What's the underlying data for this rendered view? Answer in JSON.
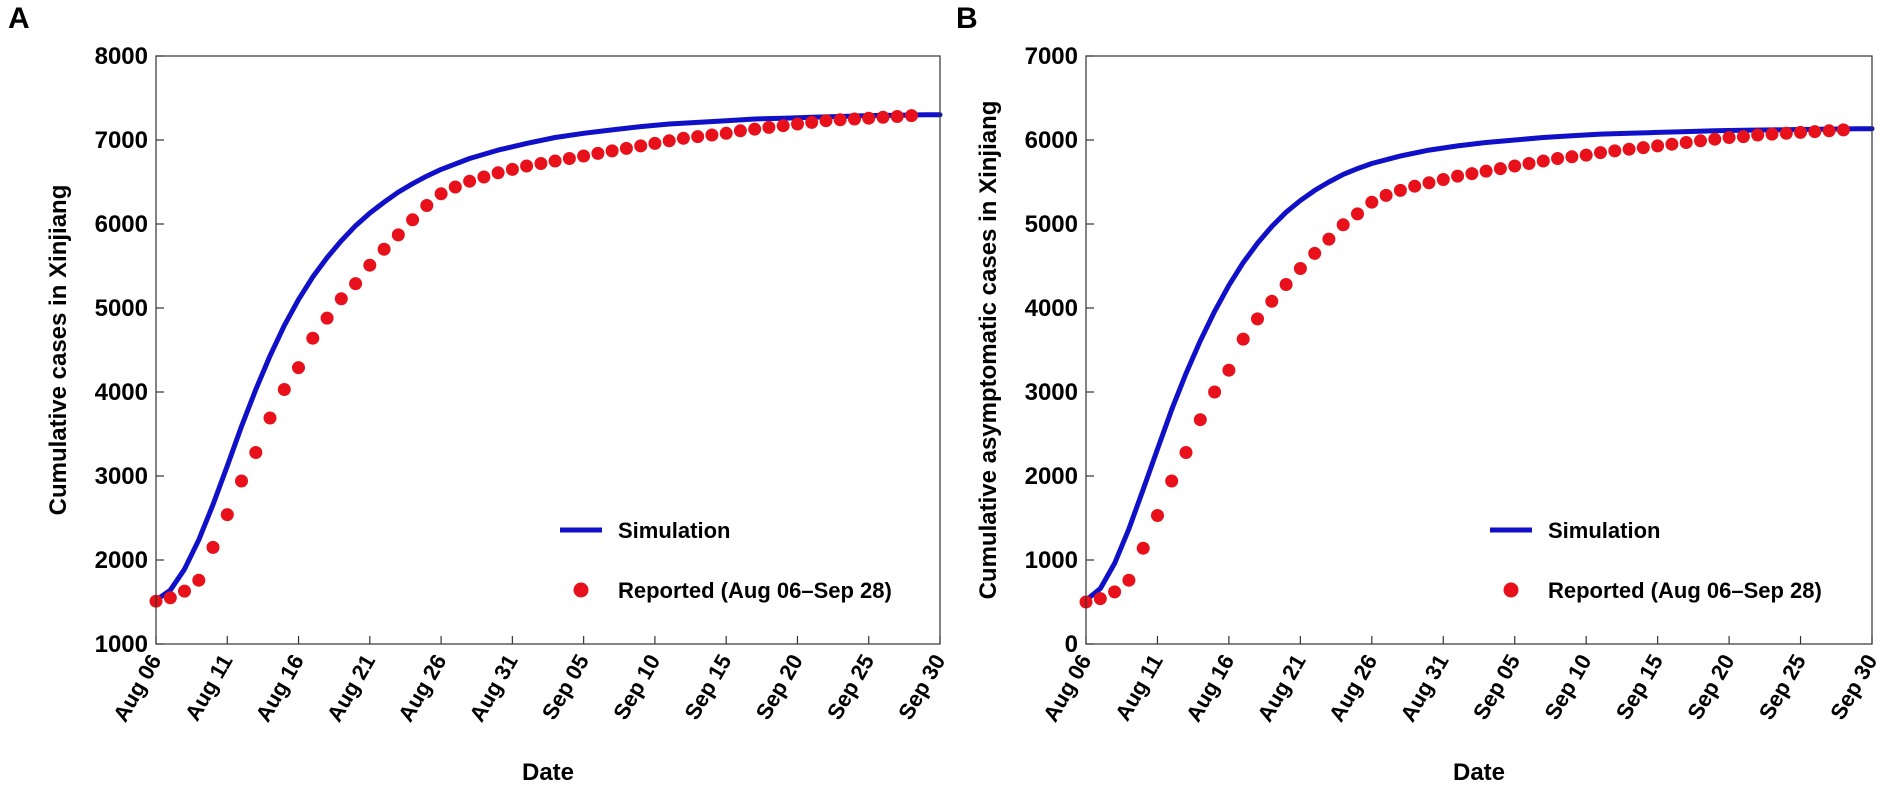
{
  "chart_data": [
    {
      "panel": "A",
      "type": "line+scatter",
      "title": "",
      "xlabel": "Date",
      "ylabel": "Cumulative cases in Xinjiang",
      "xlim": [
        0,
        55
      ],
      "ylim": [
        1000,
        8000
      ],
      "yticks": [
        1000,
        2000,
        3000,
        4000,
        5000,
        6000,
        7000,
        8000
      ],
      "xtick_positions": [
        0,
        5,
        10,
        15,
        20,
        25,
        30,
        35,
        40,
        45,
        50,
        55
      ],
      "xtick_labels": [
        "Aug 06",
        "Aug 11",
        "Aug 16",
        "Aug 21",
        "Aug 26",
        "Aug 31",
        "Sep 05",
        "Sep 10",
        "Sep 15",
        "Sep 20",
        "Sep 25",
        "Sep 30"
      ],
      "legend_position": "lower-right",
      "series": [
        {
          "name": "Simulation",
          "kind": "line",
          "color": "#1010c8",
          "x": [
            0,
            1,
            2,
            3,
            4,
            5,
            6,
            7,
            8,
            9,
            10,
            11,
            12,
            13,
            14,
            15,
            16,
            17,
            18,
            19,
            20,
            22,
            24,
            26,
            28,
            30,
            32,
            34,
            36,
            38,
            40,
            42,
            44,
            46,
            48,
            50,
            52,
            54,
            55
          ],
          "values": [
            1520,
            1640,
            1890,
            2240,
            2660,
            3120,
            3590,
            4030,
            4430,
            4790,
            5100,
            5370,
            5600,
            5800,
            5980,
            6130,
            6260,
            6380,
            6480,
            6570,
            6650,
            6780,
            6880,
            6960,
            7030,
            7080,
            7120,
            7160,
            7190,
            7210,
            7230,
            7250,
            7260,
            7270,
            7280,
            7290,
            7295,
            7300,
            7300
          ]
        },
        {
          "name": "Reported (Aug 06–Sep 28)",
          "kind": "scatter",
          "color": "#e8101a",
          "x": [
            0,
            1,
            2,
            3,
            4,
            5,
            6,
            7,
            8,
            9,
            10,
            11,
            12,
            13,
            14,
            15,
            16,
            17,
            18,
            19,
            20,
            21,
            22,
            23,
            24,
            25,
            26,
            27,
            28,
            29,
            30,
            31,
            32,
            33,
            34,
            35,
            36,
            37,
            38,
            39,
            40,
            41,
            42,
            43,
            44,
            45,
            46,
            47,
            48,
            49,
            50,
            51,
            52,
            53
          ],
          "values": [
            1510,
            1550,
            1630,
            1760,
            2150,
            2540,
            2940,
            3280,
            3690,
            4030,
            4290,
            4640,
            4880,
            5110,
            5290,
            5510,
            5700,
            5870,
            6050,
            6220,
            6360,
            6440,
            6510,
            6560,
            6610,
            6650,
            6690,
            6720,
            6750,
            6780,
            6810,
            6840,
            6870,
            6900,
            6930,
            6960,
            6990,
            7020,
            7040,
            7060,
            7080,
            7110,
            7130,
            7150,
            7170,
            7190,
            7210,
            7230,
            7240,
            7250,
            7260,
            7270,
            7280,
            7290
          ]
        }
      ]
    },
    {
      "panel": "B",
      "type": "line+scatter",
      "title": "",
      "xlabel": "Date",
      "ylabel": "Cumulative asymptomatic cases in Xinjiang",
      "xlim": [
        0,
        55
      ],
      "ylim": [
        0,
        7000
      ],
      "yticks": [
        0,
        1000,
        2000,
        3000,
        4000,
        5000,
        6000,
        7000
      ],
      "xtick_positions": [
        0,
        5,
        10,
        15,
        20,
        25,
        30,
        35,
        40,
        45,
        50,
        55
      ],
      "xtick_labels": [
        "Aug 06",
        "Aug 11",
        "Aug 16",
        "Aug 21",
        "Aug 26",
        "Aug 31",
        "Sep 05",
        "Sep 10",
        "Sep 15",
        "Sep 20",
        "Sep 25",
        "Sep 30"
      ],
      "legend_position": "lower-right",
      "series": [
        {
          "name": "Simulation",
          "kind": "line",
          "color": "#1010c8",
          "x": [
            0,
            1,
            2,
            3,
            4,
            5,
            6,
            7,
            8,
            9,
            10,
            11,
            12,
            13,
            14,
            15,
            16,
            17,
            18,
            19,
            20,
            22,
            24,
            26,
            28,
            30,
            32,
            34,
            36,
            38,
            40,
            42,
            44,
            46,
            48,
            50,
            52,
            54,
            55
          ],
          "values": [
            520,
            660,
            960,
            1370,
            1840,
            2320,
            2790,
            3220,
            3610,
            3960,
            4270,
            4540,
            4770,
            4970,
            5140,
            5280,
            5400,
            5500,
            5590,
            5660,
            5720,
            5810,
            5880,
            5930,
            5970,
            6000,
            6030,
            6050,
            6070,
            6080,
            6090,
            6100,
            6110,
            6115,
            6120,
            6125,
            6130,
            6135,
            6135
          ]
        },
        {
          "name": "Reported (Aug 06–Sep 28)",
          "kind": "scatter",
          "color": "#e8101a",
          "x": [
            0,
            1,
            2,
            3,
            4,
            5,
            6,
            7,
            8,
            9,
            10,
            11,
            12,
            13,
            14,
            15,
            16,
            17,
            18,
            19,
            20,
            21,
            22,
            23,
            24,
            25,
            26,
            27,
            28,
            29,
            30,
            31,
            32,
            33,
            34,
            35,
            36,
            37,
            38,
            39,
            40,
            41,
            42,
            43,
            44,
            45,
            46,
            47,
            48,
            49,
            50,
            51,
            52,
            53
          ],
          "values": [
            500,
            540,
            620,
            760,
            1140,
            1530,
            1940,
            2280,
            2670,
            3000,
            3260,
            3630,
            3870,
            4080,
            4280,
            4470,
            4650,
            4820,
            4990,
            5120,
            5260,
            5340,
            5400,
            5450,
            5490,
            5530,
            5570,
            5600,
            5630,
            5660,
            5690,
            5720,
            5750,
            5780,
            5800,
            5820,
            5850,
            5870,
            5890,
            5910,
            5930,
            5950,
            5970,
            5990,
            6010,
            6030,
            6040,
            6060,
            6070,
            6080,
            6090,
            6100,
            6110,
            6120
          ]
        }
      ]
    }
  ]
}
